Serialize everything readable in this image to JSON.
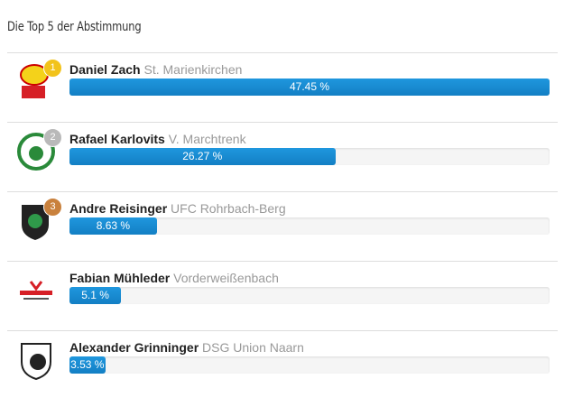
{
  "title": "Die Top 5 der Abstimmung",
  "entries": [
    {
      "rank": 1,
      "name": "Daniel Zach",
      "club": "St. Marienkirchen",
      "percent": 47.45,
      "percent_label": "47.45 %"
    },
    {
      "rank": 2,
      "name": "Rafael Karlovits",
      "club": "V. Marchtrenk",
      "percent": 26.27,
      "percent_label": "26.27 %"
    },
    {
      "rank": 3,
      "name": "Andre Reisinger",
      "club": "UFC Rohrbach-Berg",
      "percent": 8.63,
      "percent_label": "8.63 %"
    },
    {
      "name": "Fabian Mühleder",
      "club": "Vorderweißenbach",
      "percent": 5.1,
      "percent_label": "5.1 %"
    },
    {
      "name": "Alexander Grinninger",
      "club": "DSG Union Naarn",
      "percent": 3.53,
      "percent_label": "3.53 %"
    }
  ]
}
